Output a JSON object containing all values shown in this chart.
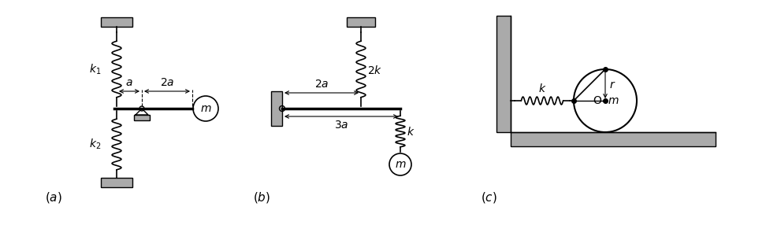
{
  "bg_color": "#ffffff",
  "line_color": "#000000",
  "wall_color": "#aaaaaa",
  "fig_width": 972,
  "fig_height": 286
}
